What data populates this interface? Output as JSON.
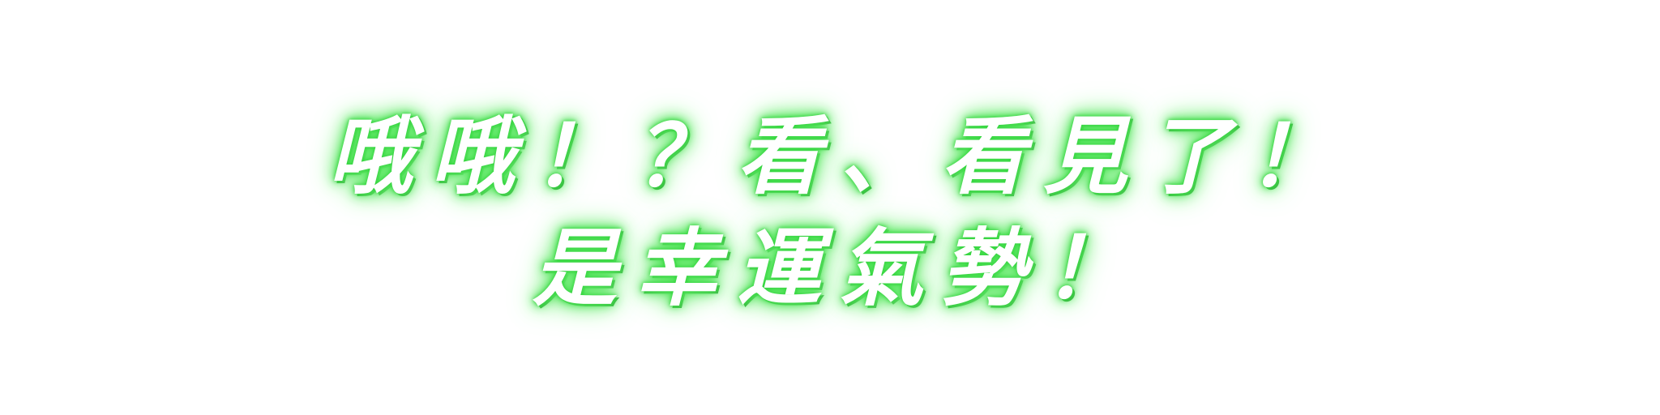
{
  "dialogue": {
    "line1": "哦哦！？看、看見了！",
    "line2": "是幸運氣勢！"
  },
  "colors": {
    "text": "#ffffff",
    "glow": "#3fdc48",
    "background": "#ffffff"
  }
}
